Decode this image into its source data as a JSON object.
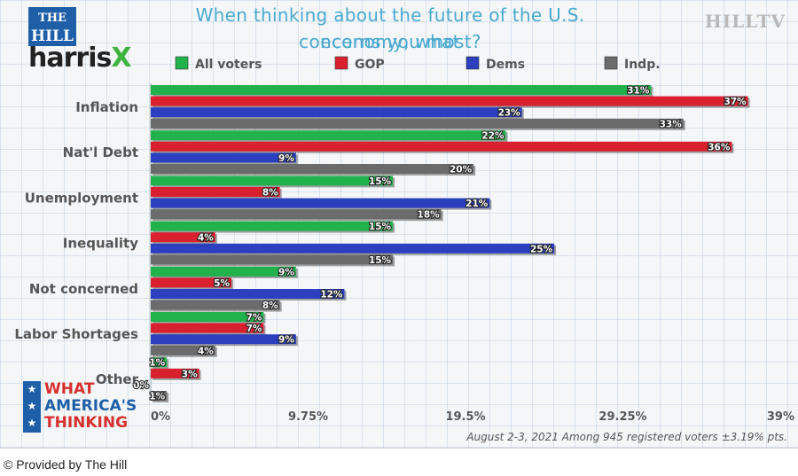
{
  "chart_data": {
    "type": "bar",
    "orientation": "horizontal",
    "title_line1": "When thinking about the future of the U.S. economy, what",
    "title_line2": "concerns you most?",
    "categories": [
      "Inflation",
      "Nat'l Debt",
      "Unemployment",
      "Inequality",
      "Not concerned",
      "Labor Shortages",
      "Other"
    ],
    "series": [
      {
        "name": "All voters",
        "color": "#22b24c",
        "values": [
          31,
          22,
          15,
          15,
          9,
          7,
          1
        ]
      },
      {
        "name": "GOP",
        "color": "#d8202e",
        "values": [
          37,
          36,
          8,
          4,
          5,
          7,
          3
        ]
      },
      {
        "name": "Dems",
        "color": "#2b3fbf",
        "values": [
          23,
          9,
          21,
          25,
          12,
          9,
          0
        ]
      },
      {
        "name": "Indp.",
        "color": "#6b6b6b",
        "values": [
          33,
          20,
          18,
          15,
          8,
          4,
          1
        ]
      }
    ],
    "value_labels": [
      [
        "31%",
        "37%",
        "23%",
        "33%"
      ],
      [
        "22%",
        "36%",
        "9%",
        "20%"
      ],
      [
        "15%",
        "8%",
        "21%",
        "18%"
      ],
      [
        "15%",
        "4%",
        "25%",
        "15%"
      ],
      [
        "9%",
        "5%",
        "12%",
        "8%"
      ],
      [
        "7%",
        "7%",
        "9%",
        "4%"
      ],
      [
        "1%",
        "3%",
        "0%",
        "1%"
      ]
    ],
    "x_ticks": [
      0,
      9.75,
      19.5,
      29.25,
      39
    ],
    "x_tick_labels": [
      "0%",
      "9.75%",
      "19.5%",
      "29.25%",
      "39%"
    ],
    "xlim": [
      0,
      39
    ],
    "legend_position": "top"
  },
  "branding": {
    "hill_line1": "THE",
    "hill_line2": "HILL",
    "harris": "harris",
    "harris_x": "X",
    "hilltv": "HILLTV",
    "wat_line1": "WHAT",
    "wat_line2": "AMERICA'S",
    "wat_line3": "THINKING",
    "star": "★"
  },
  "source_note": "August 2-3, 2021 Among 945 registered voters ±3.19% pts.",
  "footer": "© Provided by The Hill"
}
